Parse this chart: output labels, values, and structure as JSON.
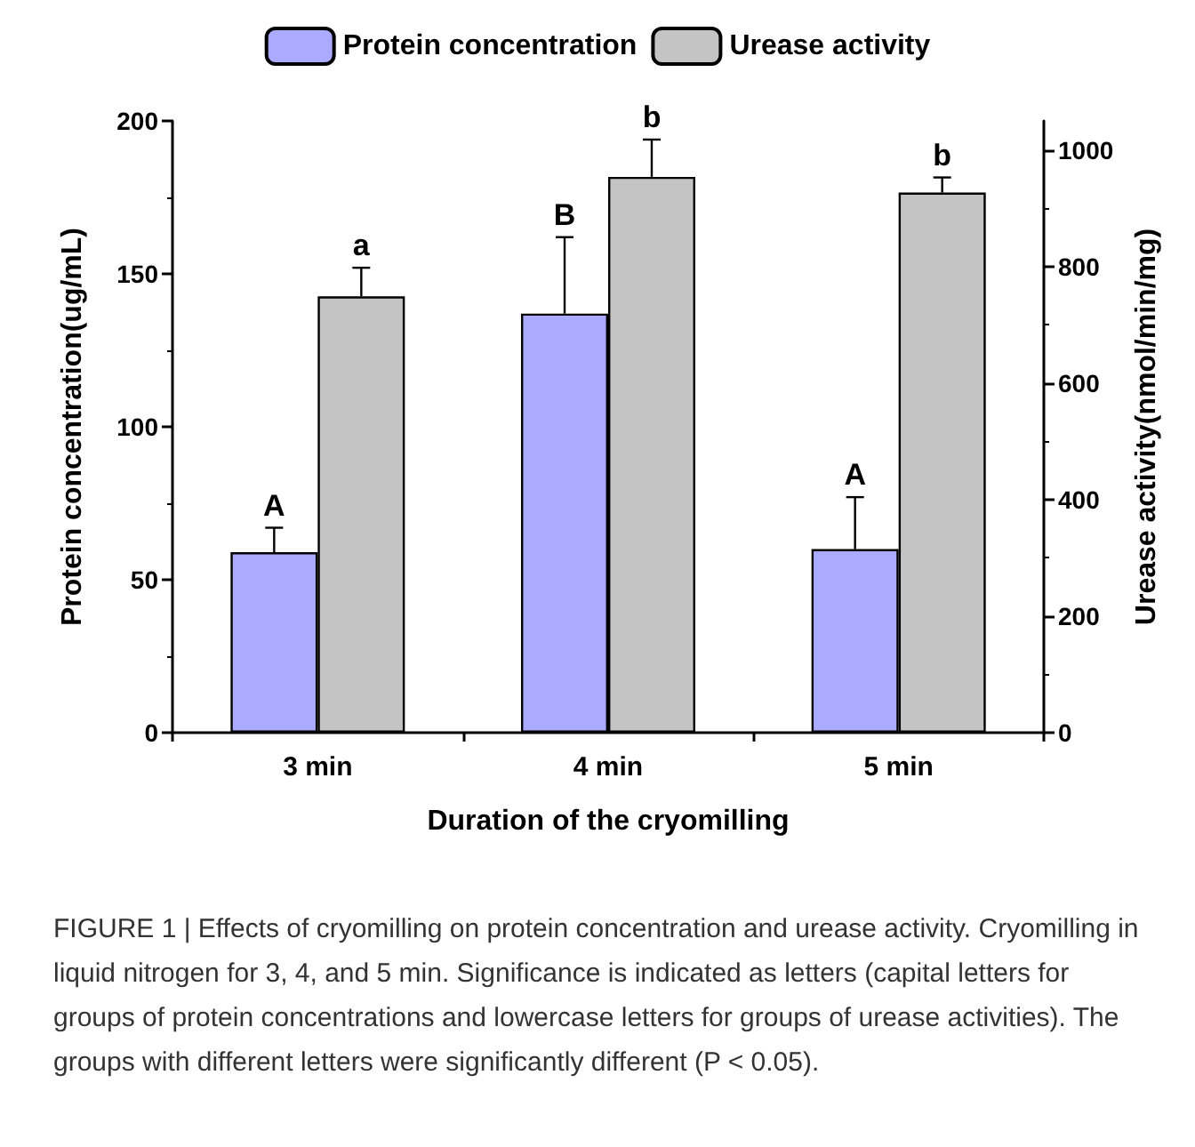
{
  "chart_data": {
    "type": "bar",
    "xlabel": "Duration of the cryomilling",
    "ylabel": "Protein concentration(ug/mL)",
    "y2label": "Urease activity(nmol/min/mg)",
    "categories": [
      "3 min",
      "4 min",
      "5 min"
    ],
    "series": [
      {
        "name": "Protein concentration",
        "color": "#aaaaff",
        "values": [
          59,
          137,
          60
        ],
        "errors": [
          [
            59,
            67
          ],
          [
            137,
            162
          ],
          [
            60,
            77
          ]
        ],
        "value_labels": [
          "A",
          "B",
          "A"
        ]
      },
      {
        "name": "Urease activity",
        "color": "#c4c4c4",
        "axis": "y2",
        "values": [
          749,
          954,
          927
        ],
        "errors": [
          [
            749,
            798
          ],
          [
            954,
            1018
          ],
          [
            927,
            953
          ]
        ],
        "value_labels": [
          "a",
          "b",
          "b"
        ]
      }
    ],
    "ylim": [
      0,
      200
    ],
    "yticks": [
      0,
      50,
      100,
      150,
      200
    ],
    "y2lim": [
      0,
      1050
    ],
    "y2ticks": [
      0,
      200,
      400,
      600,
      800,
      1000
    ],
    "grid": false,
    "legend": "top",
    "annotations": [
      "FIGURE 1 | Effects of cryomilling on protein concentration and urease activity. Cryomilling in liquid nitrogen for 3, 4, and 5 min. Significance is indicated as letters (capital letters for groups of protein concentrations and lowercase letters for groups of urease activities). The groups with different letters were significantly different (P < 0.05)."
    ]
  }
}
